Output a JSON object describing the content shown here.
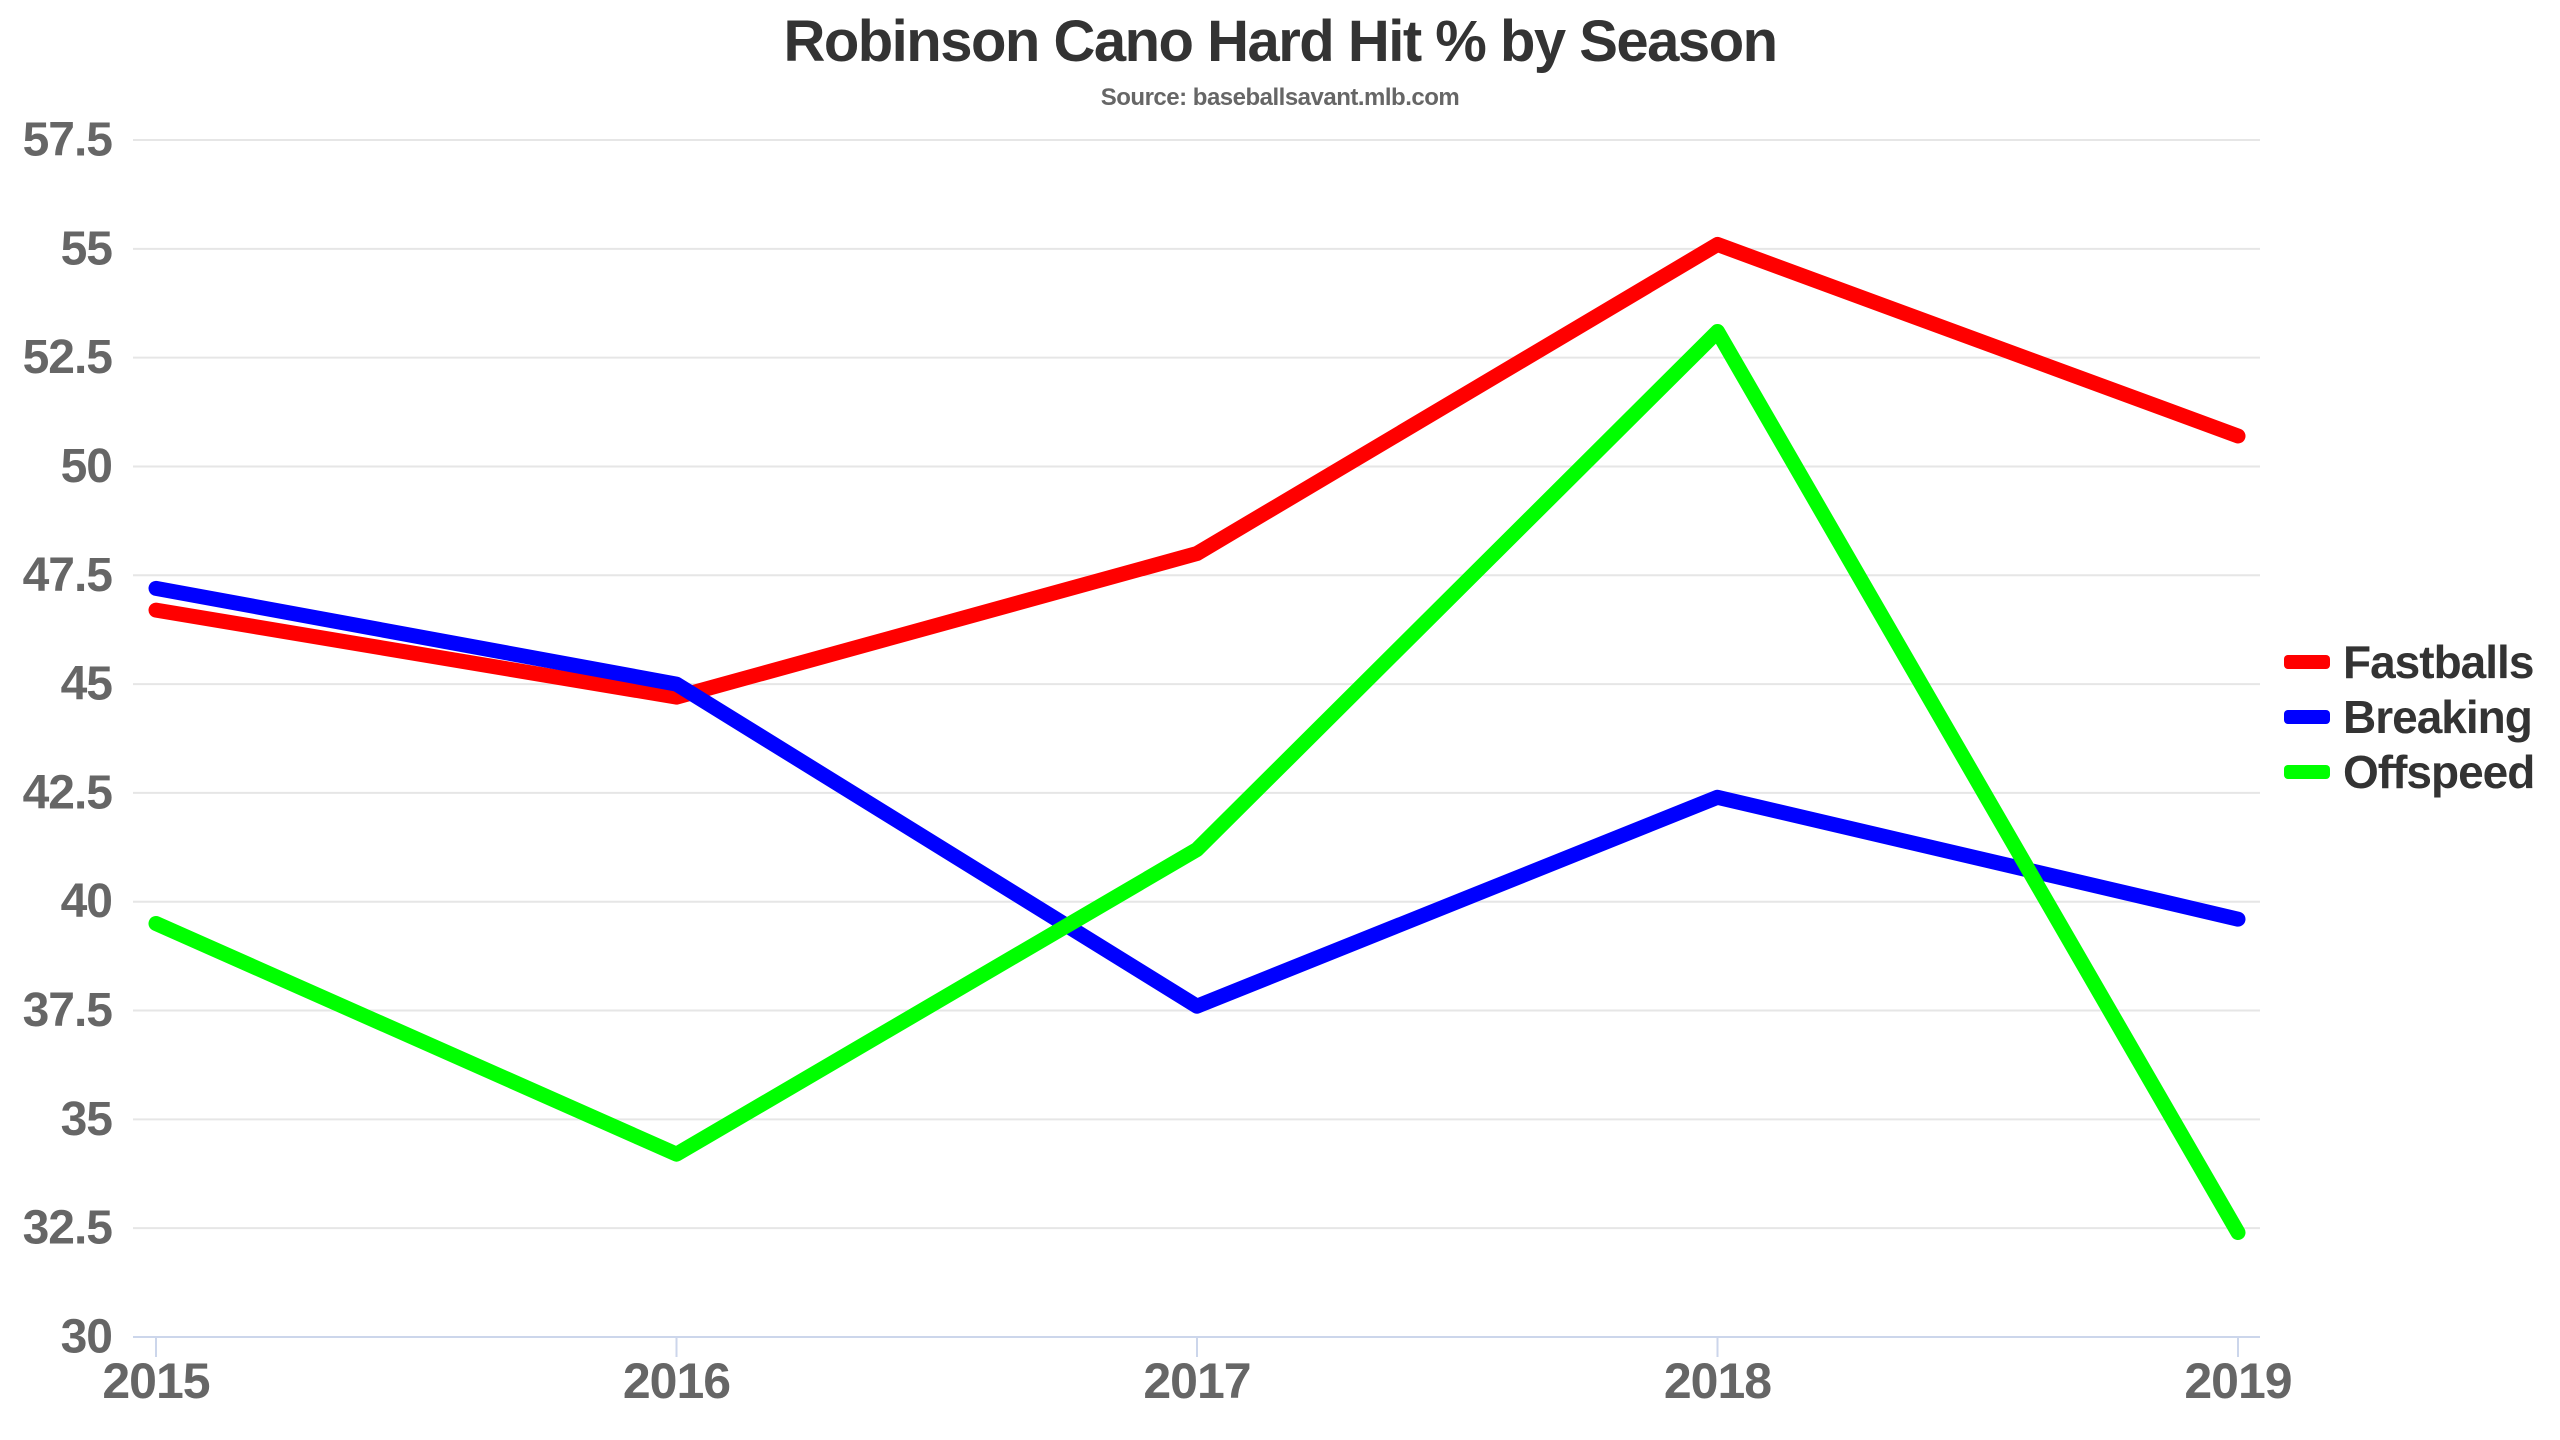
{
  "chart_data": {
    "type": "line",
    "title": "Robinson Cano Hard Hit % by Season",
    "subtitle": "Source: baseballsavant.mlb.com",
    "xlabel": "",
    "ylabel": "",
    "categories": [
      2015,
      2016,
      2017,
      2018,
      2019
    ],
    "series": [
      {
        "name": "Fastballs",
        "color": "#ff0000",
        "values": [
          46.7,
          44.7,
          48.0,
          55.1,
          50.7
        ]
      },
      {
        "name": "Breaking",
        "color": "#0000ff",
        "values": [
          47.2,
          45.0,
          37.6,
          42.4,
          39.6
        ]
      },
      {
        "name": "Offspeed",
        "color": "#00ff00",
        "values": [
          39.5,
          34.2,
          41.2,
          53.1,
          32.4
        ]
      }
    ],
    "yticks": [
      30,
      32.5,
      35,
      37.5,
      40,
      42.5,
      45,
      47.5,
      50,
      52.5,
      55,
      57.5
    ],
    "ylim": [
      30,
      58.5
    ],
    "grid": "horizontal-only",
    "legend_position": "right-middle",
    "colors": {
      "background": "#ffffff",
      "title_text": "#333333",
      "subtitle_text": "#666666",
      "axis_label_text": "#666666",
      "gridline": "#e6e6e6",
      "axis_line": "#ccd6eb"
    }
  }
}
